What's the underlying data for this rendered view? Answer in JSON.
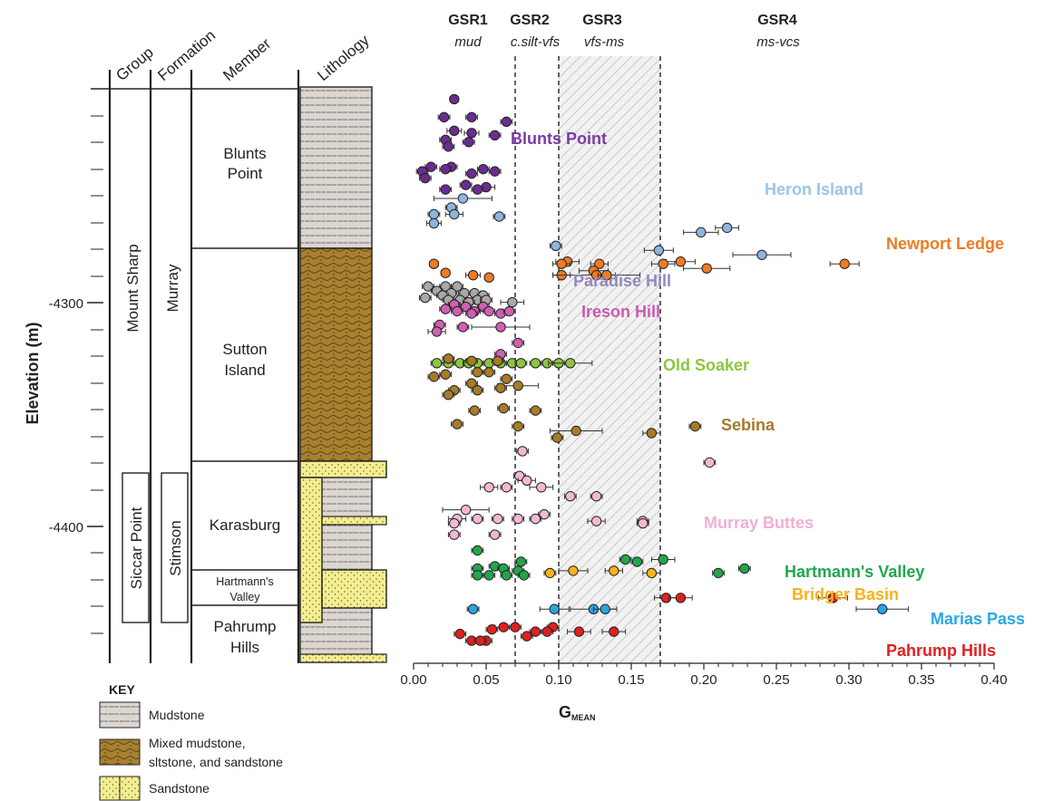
{
  "strat": {
    "headers": [
      "Group",
      "Formation",
      "Member",
      "Lithology"
    ],
    "group_main": "Mount Sharp",
    "group_sub": "Siccar Point",
    "formation_main": "Murray",
    "formation_sub": "Stimson",
    "members": [
      {
        "line1": "Blunts",
        "line2": "Point"
      },
      {
        "line1": "Sutton",
        "line2": "Island"
      },
      {
        "line1": "Karasburg",
        "line2": ""
      },
      {
        "line1": "Hartmann's",
        "line2": "Valley"
      },
      {
        "line1": "Pahrump",
        "line2": "Hills"
      }
    ],
    "y_axis_title": "Elevation (m)",
    "y_ticks": [
      "-4300",
      "-4400"
    ]
  },
  "key": {
    "title": "KEY",
    "items": [
      {
        "label1": "Mudstone",
        "label2": ""
      },
      {
        "label1": "Mixed mudstone,",
        "label2": "sltstone, and sandstone"
      },
      {
        "label1": "Sandstone",
        "label2": ""
      }
    ]
  },
  "gsr": [
    {
      "name": "GSR1",
      "sub": "mud"
    },
    {
      "name": "GSR2",
      "sub": "c.silt-vfs"
    },
    {
      "name": "GSR3",
      "sub": "vfs-ms"
    },
    {
      "name": "GSR4",
      "sub": "ms-vcs"
    }
  ],
  "x_axis_title": "G",
  "x_axis_sub": "MEAN",
  "chart_data": {
    "type": "scatter",
    "xlabel": "GMEAN",
    "ylabel": "Elevation (m)",
    "xlim": [
      0.0,
      0.4
    ],
    "ylim": [
      -4455,
      -4200
    ],
    "x_ticks": [
      "0.00",
      "0.05",
      "0.10",
      "0.15",
      "0.20",
      "0.25",
      "0.30",
      "0.35",
      "0.40"
    ],
    "thresholds": [
      0.07,
      0.1,
      0.17
    ],
    "grid": false,
    "error_bars": "horizontal",
    "series": [
      {
        "name": "Blunts Point",
        "color": "#6a2c91",
        "points": [
          [
            0.028,
            -4205,
            0.003
          ],
          [
            0.021,
            -4213,
            0.004
          ],
          [
            0.04,
            -4213,
            0.004
          ],
          [
            0.064,
            -4215,
            0.004
          ],
          [
            0.028,
            -4219,
            0.005
          ],
          [
            0.04,
            -4220,
            0.005
          ],
          [
            0.056,
            -4221,
            0.004
          ],
          [
            0.022,
            -4223,
            0.004
          ],
          [
            0.038,
            -4224,
            0.004
          ],
          [
            0.024,
            -4226,
            0.004
          ],
          [
            0.012,
            -4235,
            0.004
          ],
          [
            0.026,
            -4235,
            0.004
          ],
          [
            0.048,
            -4236,
            0.004
          ],
          [
            0.006,
            -4237,
            0.004
          ],
          [
            0.022,
            -4236,
            0.004
          ],
          [
            0.056,
            -4237,
            0.004
          ],
          [
            0.04,
            -4238,
            0.004
          ],
          [
            0.008,
            -4240,
            0.004
          ],
          [
            0.036,
            -4243,
            0.004
          ],
          [
            0.05,
            -4244,
            0.006
          ],
          [
            0.022,
            -4245,
            0.004
          ],
          [
            0.044,
            -4245,
            0.004
          ]
        ]
      },
      {
        "name": "Heron Island",
        "color": "#8fb4e0",
        "points": [
          [
            0.034,
            -4249,
            0.02
          ],
          [
            0.026,
            -4253,
            0.004
          ],
          [
            0.014,
            -4256,
            0.004
          ],
          [
            0.028,
            -4256,
            0.006
          ],
          [
            0.059,
            -4257,
            0.004
          ],
          [
            0.014,
            -4260,
            0.005
          ],
          [
            0.216,
            -4262,
            0.008
          ],
          [
            0.198,
            -4264,
            0.012
          ],
          [
            0.098,
            -4270,
            0.004
          ],
          [
            0.169,
            -4272,
            0.01
          ],
          [
            0.24,
            -4274,
            0.02
          ]
        ]
      },
      {
        "name": "Newport Ledge",
        "color": "#ef7b23",
        "points": [
          [
            0.106,
            -4277,
            0.008
          ],
          [
            0.184,
            -4277,
            0.01
          ],
          [
            0.014,
            -4278,
            0.003
          ],
          [
            0.102,
            -4278,
            0.006
          ],
          [
            0.128,
            -4278,
            0.006
          ],
          [
            0.172,
            -4278,
            0.008
          ],
          [
            0.297,
            -4278,
            0.01
          ],
          [
            0.202,
            -4280,
            0.016
          ],
          [
            0.124,
            -4281,
            0.01
          ],
          [
            0.022,
            -4282,
            0.003
          ],
          [
            0.041,
            -4283,
            0.005
          ],
          [
            0.052,
            -4284,
            0.003
          ],
          [
            0.102,
            -4283,
            0.006
          ],
          [
            0.126,
            -4283,
            0.03
          ],
          [
            0.133,
            -4283,
            0.006
          ]
        ]
      },
      {
        "name": "Paradise Hill",
        "color": "#a8a8a8",
        "points": [
          [
            0.01,
            -4288,
            0.004
          ],
          [
            0.022,
            -4288,
            0.004
          ],
          [
            0.03,
            -4288,
            0.004
          ],
          [
            0.016,
            -4290,
            0.004
          ],
          [
            0.026,
            -4291,
            0.004
          ],
          [
            0.035,
            -4291,
            0.004
          ],
          [
            0.042,
            -4291,
            0.004
          ],
          [
            0.048,
            -4292,
            0.004
          ],
          [
            0.02,
            -4292,
            0.004
          ],
          [
            0.008,
            -4293,
            0.004
          ],
          [
            0.024,
            -4294,
            0.004
          ],
          [
            0.032,
            -4294,
            0.004
          ],
          [
            0.044,
            -4294,
            0.004
          ],
          [
            0.05,
            -4294,
            0.004
          ],
          [
            0.068,
            -4295,
            0.008
          ],
          [
            0.038,
            -4295,
            0.004
          ],
          [
            0.028,
            -4296,
            0.004
          ]
        ]
      },
      {
        "name": "Ireson Hill",
        "color": "#d05fb5",
        "points": [
          [
            0.028,
            -4296,
            0.004
          ],
          [
            0.036,
            -4297,
            0.004
          ],
          [
            0.048,
            -4297,
            0.004
          ],
          [
            0.022,
            -4298,
            0.004
          ],
          [
            0.03,
            -4299,
            0.004
          ],
          [
            0.042,
            -4299,
            0.004
          ],
          [
            0.052,
            -4299,
            0.004
          ],
          [
            0.06,
            -4300,
            0.004
          ],
          [
            0.066,
            -4299,
            0.004
          ],
          [
            0.04,
            -4300,
            0.004
          ],
          [
            0.018,
            -4305,
            0.004
          ],
          [
            0.034,
            -4306,
            0.004
          ],
          [
            0.06,
            -4306,
            0.02
          ],
          [
            0.016,
            -4308,
            0.006
          ],
          [
            0.072,
            -4313,
            0.004
          ],
          [
            0.06,
            -4318,
            0.004
          ]
        ]
      },
      {
        "name": "Old Soaker",
        "color": "#8dc63f",
        "points": [
          [
            0.016,
            -4322,
            0.004
          ],
          [
            0.024,
            -4322,
            0.004
          ],
          [
            0.032,
            -4322,
            0.004
          ],
          [
            0.038,
            -4322,
            0.004
          ],
          [
            0.044,
            -4322,
            0.004
          ],
          [
            0.052,
            -4322,
            0.004
          ],
          [
            0.06,
            -4322,
            0.004
          ],
          [
            0.068,
            -4322,
            0.004
          ],
          [
            0.074,
            -4322,
            0.004
          ],
          [
            0.084,
            -4322,
            0.004
          ],
          [
            0.092,
            -4322,
            0.004
          ],
          [
            0.1,
            -4322,
            0.004
          ],
          [
            0.108,
            -4322,
            0.015
          ]
        ]
      },
      {
        "name": "Sebina",
        "color": "#a67c28",
        "points": [
          [
            0.024,
            -4320,
            0.004
          ],
          [
            0.04,
            -4321,
            0.004
          ],
          [
            0.058,
            -4321,
            0.004
          ],
          [
            0.044,
            -4326,
            0.004
          ],
          [
            0.014,
            -4328,
            0.004
          ],
          [
            0.022,
            -4327,
            0.004
          ],
          [
            0.052,
            -4326,
            0.004
          ],
          [
            0.064,
            -4329,
            0.004
          ],
          [
            0.04,
            -4331,
            0.004
          ],
          [
            0.072,
            -4332,
            0.014
          ],
          [
            0.028,
            -4334,
            0.004
          ],
          [
            0.06,
            -4333,
            0.004
          ],
          [
            0.044,
            -4334,
            0.004
          ],
          [
            0.024,
            -4336,
            0.004
          ],
          [
            0.042,
            -4343,
            0.004
          ],
          [
            0.062,
            -4342,
            0.004
          ],
          [
            0.084,
            -4343,
            0.004
          ],
          [
            0.03,
            -4349,
            0.004
          ],
          [
            0.072,
            -4350,
            0.004
          ],
          [
            0.112,
            -4352,
            0.018
          ],
          [
            0.099,
            -4355,
            0.004
          ],
          [
            0.164,
            -4353,
            0.006
          ],
          [
            0.194,
            -4350,
            0.004
          ]
        ]
      },
      {
        "name": "Murray Buttes",
        "color": "#f4b8d4",
        "points": [
          [
            0.075,
            -4361,
            0.004
          ],
          [
            0.204,
            -4366,
            0.004
          ],
          [
            0.073,
            -4372,
            0.004
          ],
          [
            0.078,
            -4374,
            0.006
          ],
          [
            0.052,
            -4377,
            0.006
          ],
          [
            0.064,
            -4377,
            0.004
          ],
          [
            0.088,
            -4377,
            0.008
          ],
          [
            0.108,
            -4381,
            0.004
          ],
          [
            0.126,
            -4381,
            0.004
          ],
          [
            0.036,
            -4387,
            0.016
          ],
          [
            0.09,
            -4389,
            0.004
          ],
          [
            0.03,
            -4391,
            0.006
          ],
          [
            0.044,
            -4391,
            0.004
          ],
          [
            0.058,
            -4391,
            0.004
          ],
          [
            0.072,
            -4391,
            0.004
          ],
          [
            0.084,
            -4391,
            0.004
          ],
          [
            0.126,
            -4392,
            0.006
          ],
          [
            0.158,
            -4392,
            0.004
          ],
          [
            0.028,
            -4393,
            0.004
          ],
          [
            0.158,
            -4393,
            0.004
          ],
          [
            0.028,
            -4398,
            0.004
          ],
          [
            0.056,
            -4398,
            0.004
          ]
        ]
      },
      {
        "name": "Hartmann's Valley",
        "color": "#22a64b",
        "points": [
          [
            0.044,
            -4405,
            0.004
          ],
          [
            0.146,
            -4409,
            0.004
          ],
          [
            0.172,
            -4409,
            0.008
          ],
          [
            0.154,
            -4410,
            0.004
          ],
          [
            0.074,
            -4410,
            0.004
          ],
          [
            0.056,
            -4412,
            0.004
          ],
          [
            0.044,
            -4413,
            0.004
          ],
          [
            0.062,
            -4413,
            0.004
          ],
          [
            0.228,
            -4413,
            0.004
          ],
          [
            0.21,
            -4415,
            0.004
          ],
          [
            0.072,
            -4414,
            0.004
          ],
          [
            0.076,
            -4416,
            0.004
          ],
          [
            0.044,
            -4416,
            0.004
          ],
          [
            0.052,
            -4416,
            0.004
          ],
          [
            0.064,
            -4416,
            0.004
          ]
        ]
      },
      {
        "name": "Bridger Basin",
        "color": "#f9b21a",
        "points": [
          [
            0.094,
            -4415,
            0.004
          ],
          [
            0.11,
            -4414,
            0.01
          ],
          [
            0.138,
            -4414,
            0.006
          ],
          [
            0.164,
            -4415,
            0.006
          ]
        ]
      },
      {
        "name": "Marias Pass",
        "color": "#2ba4e0",
        "points": [
          [
            0.041,
            -4431,
            0.004
          ],
          [
            0.097,
            -4431,
            0.01
          ],
          [
            0.124,
            -4431,
            0.016
          ],
          [
            0.132,
            -4431,
            0.008
          ],
          [
            0.323,
            -4431,
            0.018
          ]
        ]
      },
      {
        "name": "Pahrump Hills",
        "color": "#e02020",
        "points": [
          [
            0.174,
            -4426,
            0.008
          ],
          [
            0.184,
            -4426,
            0.008
          ],
          [
            0.289,
            -4426,
            0.01
          ],
          [
            0.062,
            -4439,
            0.006
          ],
          [
            0.07,
            -4439,
            0.004
          ],
          [
            0.096,
            -4439,
            0.004
          ],
          [
            0.054,
            -4440,
            0.004
          ],
          [
            0.084,
            -4441,
            0.004
          ],
          [
            0.092,
            -4441,
            0.004
          ],
          [
            0.114,
            -4441,
            0.008
          ],
          [
            0.138,
            -4441,
            0.008
          ],
          [
            0.032,
            -4442,
            0.004
          ],
          [
            0.078,
            -4443,
            0.004
          ],
          [
            0.04,
            -4445,
            0.004
          ],
          [
            0.05,
            -4445,
            0.004
          ],
          [
            0.046,
            -4445,
            0.004
          ]
        ]
      }
    ],
    "group_labels": [
      {
        "text": "Blunts Point",
        "color": "#7b3aa6"
      },
      {
        "text": "Heron Island",
        "color": "#9cc3ea"
      },
      {
        "text": "Newport Ledge",
        "color": "#ef7b23"
      },
      {
        "text": "Paradise Hill",
        "color": "#9387be"
      },
      {
        "text": "Ireson Hill",
        "color": "#c95bb2"
      },
      {
        "text": "Old Soaker",
        "color": "#8dc63f"
      },
      {
        "text": "Sebina",
        "color": "#a37a2c"
      },
      {
        "text": "Murray Buttes",
        "color": "#f1afd2"
      },
      {
        "text": "Hartmann's Valley",
        "color": "#22a64b"
      },
      {
        "text": "Bridger Basin",
        "color": "#f9b21a"
      },
      {
        "text": "Marias Pass",
        "color": "#29a8e0"
      },
      {
        "text": "Pahrump Hills",
        "color": "#e02020"
      }
    ]
  }
}
